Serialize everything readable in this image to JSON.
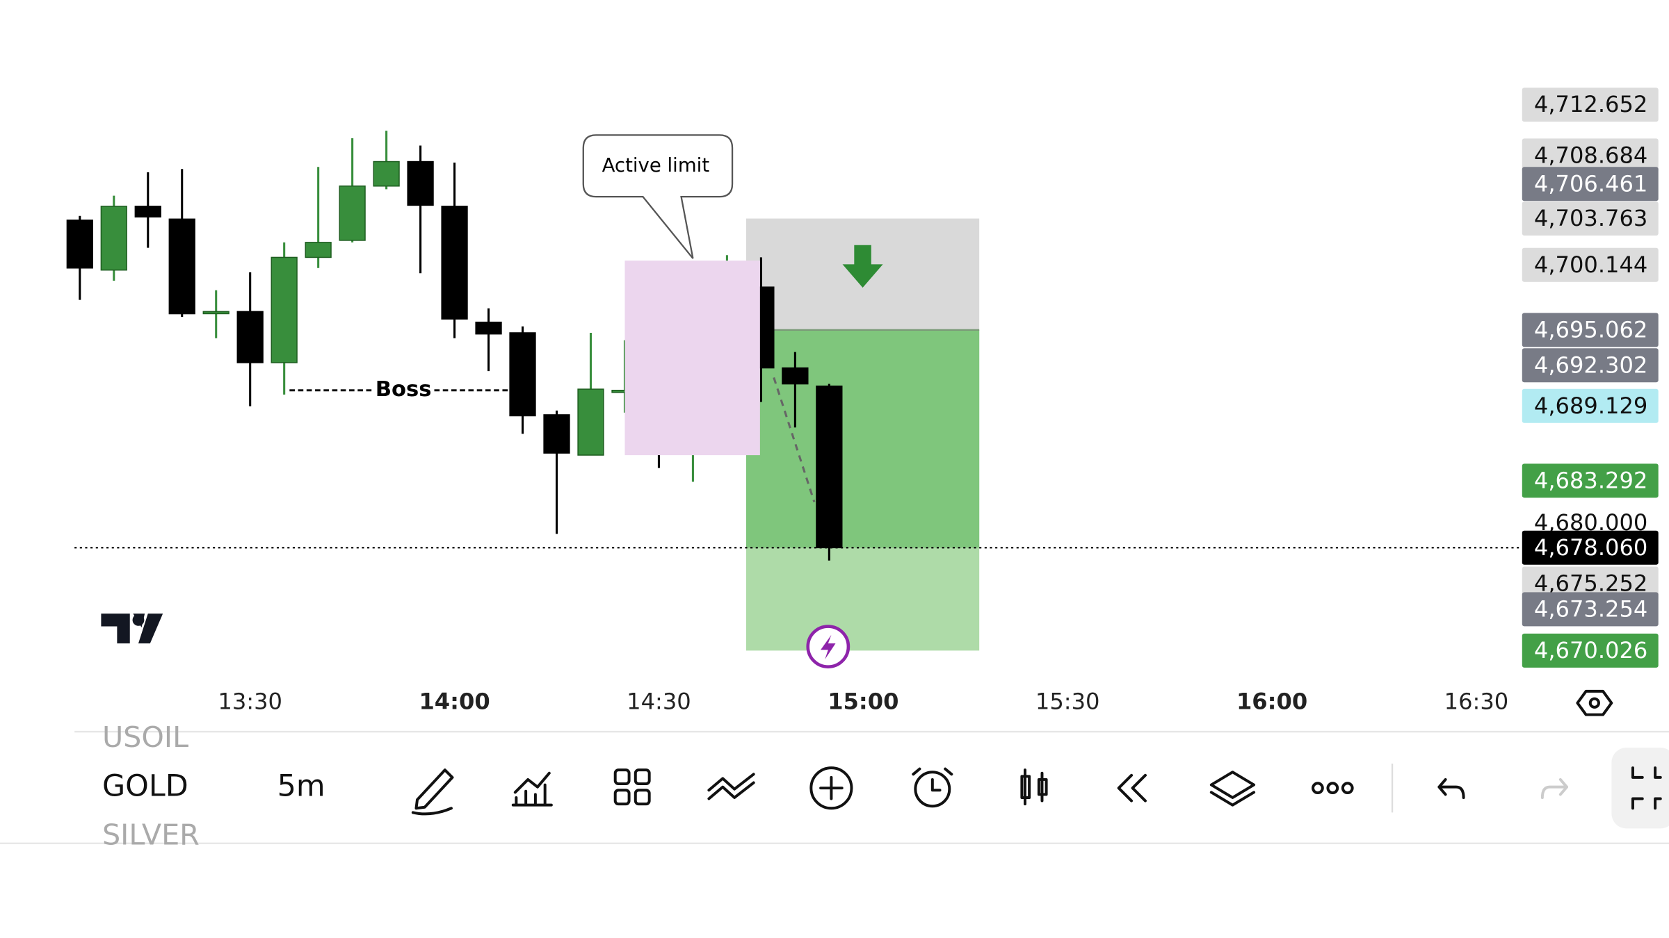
{
  "chart_data": {
    "type": "candlestick",
    "interval": "5m",
    "x": [
      "13:05",
      "13:10",
      "13:15",
      "13:20",
      "13:25",
      "13:30",
      "13:35",
      "13:40",
      "13:45",
      "13:50",
      "13:55",
      "14:00",
      "14:05",
      "14:10",
      "14:15",
      "14:20",
      "14:25",
      "14:30",
      "14:35",
      "14:40",
      "14:45",
      "14:50",
      "14:55"
    ],
    "open": [
      4703.64,
      4699.74,
      4704.72,
      4703.72,
      4696.5,
      4696.5,
      4692.51,
      4700.73,
      4702.06,
      4706.3,
      4708.21,
      4704.72,
      4695.67,
      4694.84,
      4688.44,
      4685.29,
      4690.35,
      4690.35,
      4687.94,
      4697.99,
      4698.41,
      4692.1,
      4690.68
    ],
    "high": [
      4703.97,
      4705.55,
      4707.38,
      4707.63,
      4698.16,
      4699.57,
      4701.9,
      4707.79,
      4710.04,
      4710.62,
      4709.46,
      4708.13,
      4696.75,
      4695.34,
      4688.77,
      4694.84,
      4694.26,
      4692.51,
      4697.74,
      4700.9,
      4700.73,
      4693.34,
      4690.85
    ],
    "low": [
      4697.41,
      4698.91,
      4701.48,
      4696.08,
      4694.42,
      4689.11,
      4690.02,
      4699.9,
      4701.9,
      4706.05,
      4699.49,
      4694.42,
      4691.85,
      4686.95,
      4679.14,
      4685.29,
      4688.61,
      4684.29,
      4683.21,
      4695.09,
      4689.44,
      4687.45,
      4677.06
    ],
    "close": [
      4699.9,
      4704.72,
      4703.89,
      4696.33,
      4696.5,
      4692.51,
      4700.73,
      4701.9,
      4706.3,
      4708.21,
      4704.8,
      4695.92,
      4694.75,
      4688.36,
      4685.45,
      4690.44,
      4690.35,
      4688.11,
      4697.33,
      4698.24,
      4692.1,
      4690.85,
      4678.06
    ],
    "up_color": "#388e3c",
    "down_color": "#000000",
    "ylim": [
      4667.68,
      4713.52
    ],
    "xticks": [
      "13:30",
      "14:00",
      "14:30",
      "15:00",
      "15:30",
      "16:00",
      "16:30"
    ],
    "price_labels": [
      {
        "value": 4712.652,
        "label": "4,712.652",
        "style": "light"
      },
      {
        "value": 4708.684,
        "label": "4,708.684",
        "style": "light"
      },
      {
        "value": 4706.461,
        "label": "4,706.461",
        "style": "dark"
      },
      {
        "value": 4703.763,
        "label": "4,703.763",
        "style": "light"
      },
      {
        "value": 4700.144,
        "label": "4,700.144",
        "style": "light"
      },
      {
        "value": 4695.062,
        "label": "4,695.062",
        "style": "dark"
      },
      {
        "value": 4692.302,
        "label": "4,692.302",
        "style": "dark"
      },
      {
        "value": 4689.129,
        "label": "4,689.129",
        "style": "blue"
      },
      {
        "value": 4683.292,
        "label": "4,683.292",
        "style": "green"
      },
      {
        "value": 4680,
        "label": "4,680.000",
        "style": "plain"
      },
      {
        "value": 4675.252,
        "label": "4,675.252",
        "style": "light"
      },
      {
        "value": 4673.254,
        "label": "4,673.254",
        "style": "dark"
      },
      {
        "value": 4670.026,
        "label": "4,670.026",
        "style": "green"
      },
      {
        "value": 4678.06,
        "label": "4,678.060",
        "style": "last"
      }
    ],
    "position": {
      "stop": 4703.763,
      "entry": 4695.062,
      "target": 4670.026,
      "start": "14:45",
      "end": "15:15"
    },
    "annotations": {
      "boss": "Boss",
      "callout": "Active limit"
    }
  },
  "toolbar": {
    "symbols": [
      "USOIL",
      "GOLD",
      "SILVER"
    ],
    "interval": "5m"
  }
}
